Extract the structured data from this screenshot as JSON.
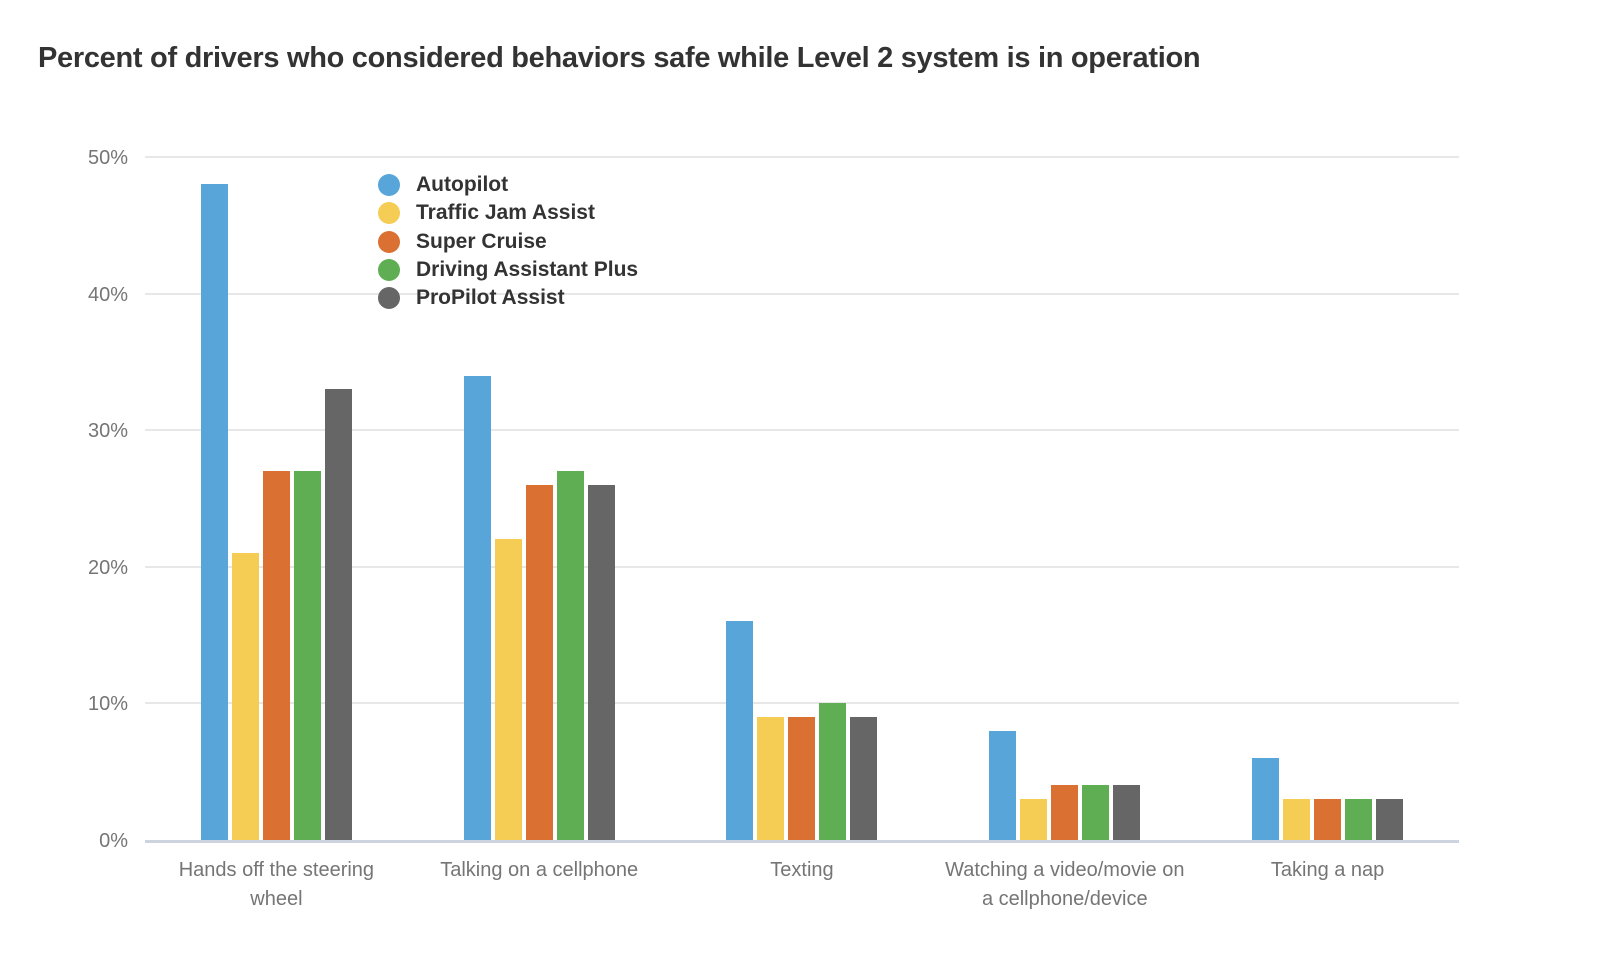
{
  "chart_data": {
    "type": "bar",
    "title": "Percent of drivers who considered behaviors safe while Level 2 system is in operation",
    "categories": [
      "Hands off the steering wheel",
      "Talking on a cellphone",
      "Texting",
      "Watching a video/movie on a cellphone/device",
      "Taking a nap"
    ],
    "series": [
      {
        "name": "Autopilot",
        "color": "#58A5DA",
        "values": [
          48,
          34,
          16,
          8,
          6
        ]
      },
      {
        "name": "Traffic Jam Assist",
        "color": "#F5CC54",
        "values": [
          21,
          22,
          9,
          3,
          3
        ]
      },
      {
        "name": "Super Cruise",
        "color": "#DB7033",
        "values": [
          27,
          26,
          9,
          4,
          3
        ]
      },
      {
        "name": "Driving Assistant Plus",
        "color": "#5FAE53",
        "values": [
          27,
          27,
          10,
          4,
          3
        ]
      },
      {
        "name": "ProPilot Assist",
        "color": "#666666",
        "values": [
          33,
          26,
          9,
          4,
          3
        ]
      }
    ],
    "y_ticks": [
      "0%",
      "10%",
      "20%",
      "30%",
      "40%",
      "50%"
    ],
    "ylim": [
      0,
      50
    ],
    "xlabel": "",
    "ylabel": "",
    "grid": true,
    "legend_position": "inside-top-left"
  },
  "style": {
    "background": "#FFFFFF",
    "grid_color": "#E7E7E7",
    "axis_line_color": "#CDD3DF",
    "tick_label_color": "#757575",
    "title_color": "#333333",
    "legend_text_color": "#333333"
  }
}
